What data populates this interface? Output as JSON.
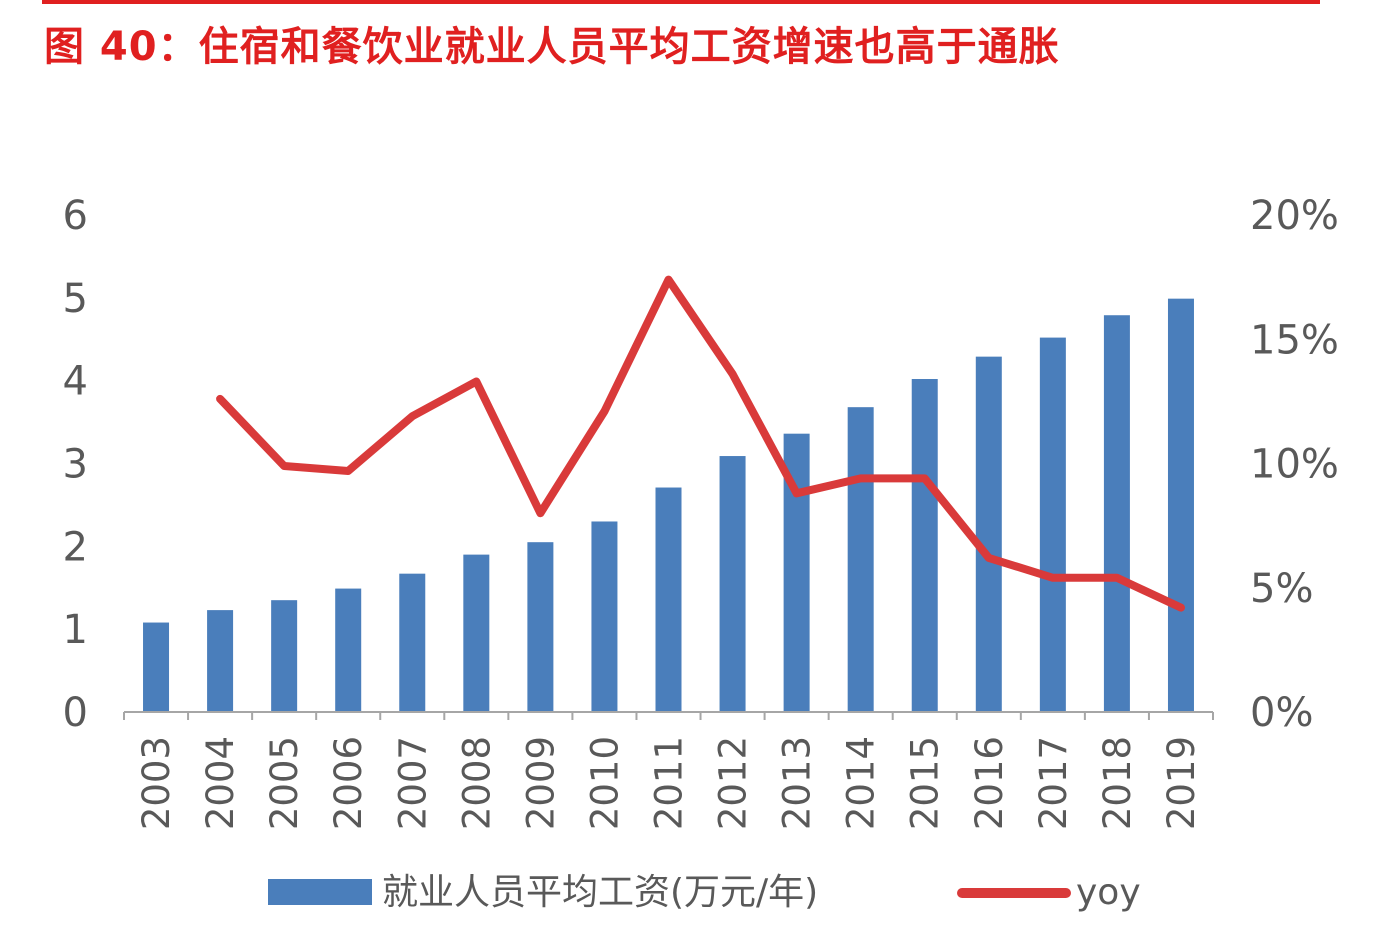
{
  "header": {
    "title": "图 40：住宿和餐饮业就业人员平均工资增速也高于通胀"
  },
  "colors": {
    "title": "#e02020",
    "bar": "#4a7ebb",
    "line": "#d93a3a",
    "axis": "#a6a6a6",
    "text": "#595959"
  },
  "chart_data": {
    "type": "bar",
    "categories": [
      "2003",
      "2004",
      "2005",
      "2006",
      "2007",
      "2008",
      "2009",
      "2010",
      "2011",
      "2012",
      "2013",
      "2014",
      "2015",
      "2016",
      "2017",
      "2018",
      "2019"
    ],
    "series": [
      {
        "name": "就业人员平均工资(万元/年)",
        "type": "bar",
        "axis": "left",
        "values": [
          1.08,
          1.23,
          1.35,
          1.49,
          1.67,
          1.9,
          2.05,
          2.3,
          2.71,
          3.09,
          3.36,
          3.68,
          4.02,
          4.29,
          4.52,
          4.79,
          4.99
        ]
      },
      {
        "name": "yoy",
        "type": "line",
        "axis": "right",
        "values": [
          null,
          12.6,
          9.9,
          9.7,
          11.9,
          13.3,
          8.0,
          12.1,
          17.4,
          13.6,
          8.8,
          9.4,
          9.4,
          6.2,
          5.4,
          5.4,
          4.2
        ]
      }
    ],
    "y_left": {
      "min": 0,
      "max": 6,
      "ticks": [
        "0",
        "1",
        "2",
        "3",
        "4",
        "5",
        "6"
      ]
    },
    "y_right": {
      "min": 0,
      "max": 20,
      "ticks": [
        "0%",
        "5%",
        "10%",
        "15%",
        "20%"
      ]
    },
    "legend": {
      "position": "bottom"
    }
  }
}
